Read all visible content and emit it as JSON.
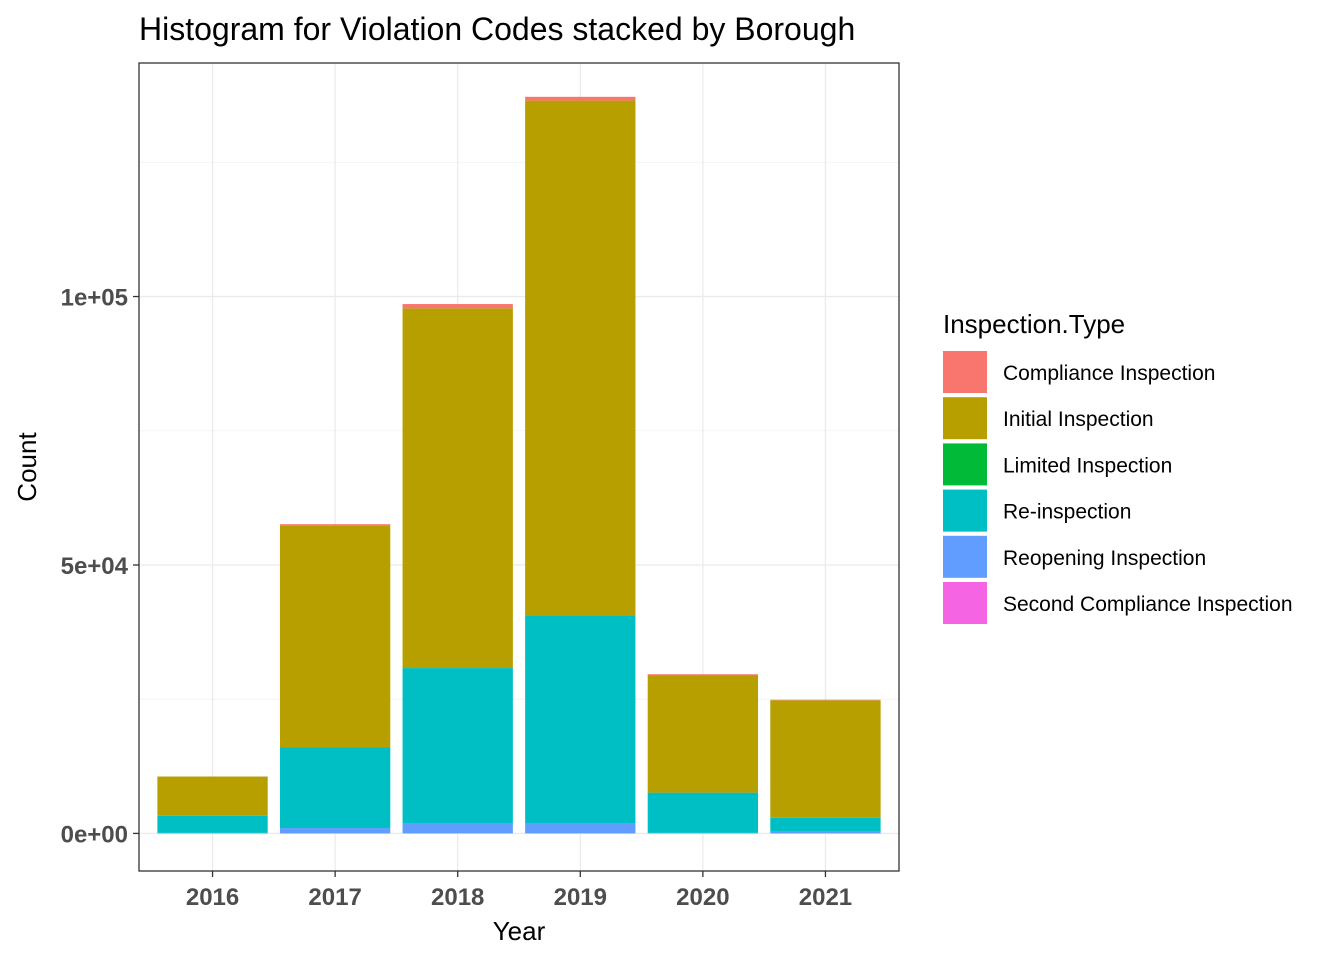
{
  "chart_data": {
    "type": "bar",
    "stacked": true,
    "title": "Histogram for Violation Codes stacked by Borough",
    "xlabel": "Year",
    "ylabel": "Count",
    "categories": [
      "2016",
      "2017",
      "2018",
      "2019",
      "2020",
      "2021"
    ],
    "ylim": [
      -7000,
      143500
    ],
    "yticks": [
      0,
      50000,
      100000
    ],
    "ytick_labels": [
      "0e+00",
      "5e+04",
      "1e+05"
    ],
    "grid": true,
    "legend_title": "Inspection.Type",
    "legend_position": "right",
    "series": [
      {
        "name": "Compliance Inspection",
        "color": "#F8766D",
        "values": [
          0,
          200,
          800,
          700,
          150,
          100
        ]
      },
      {
        "name": "Initial Inspection",
        "color": "#B79F00",
        "values": [
          7300,
          41400,
          67000,
          96000,
          21900,
          21900
        ]
      },
      {
        "name": "Limited Inspection",
        "color": "#00BA38",
        "values": [
          0,
          0,
          0,
          0,
          0,
          0
        ]
      },
      {
        "name": "Re-inspection",
        "color": "#00BFC4",
        "values": [
          3200,
          15000,
          29000,
          38700,
          7500,
          2600
        ]
      },
      {
        "name": "Reopening Inspection",
        "color": "#619CFF",
        "values": [
          100,
          1000,
          1800,
          1800,
          100,
          300
        ]
      },
      {
        "name": "Second Compliance Inspection",
        "color": "#F564E3",
        "values": [
          0,
          0,
          0,
          0,
          0,
          0
        ]
      }
    ]
  }
}
